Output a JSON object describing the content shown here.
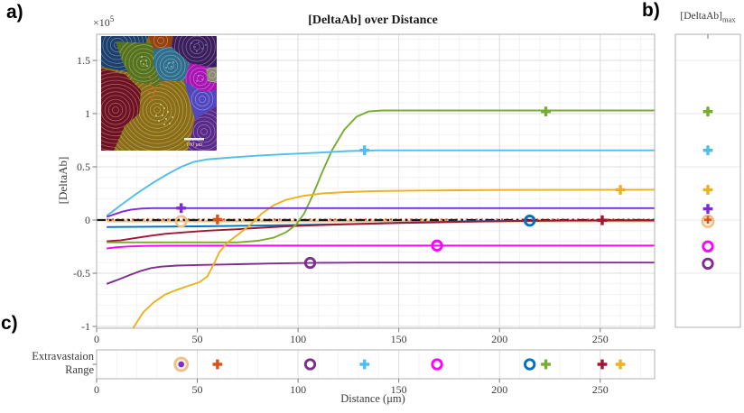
{
  "panel_labels": {
    "a": "a)",
    "b": "b)",
    "c": "c)"
  },
  "main_chart": {
    "title": "[DeltaAb] over Distance",
    "ylabel": "[DeltaAb]",
    "y_exponent_base": "×10",
    "y_exponent_sup": "5"
  },
  "panel_b": {
    "title_base": "[DeltaAb]",
    "title_sub": "max"
  },
  "panel_c": {
    "row_label_line1": "Extravastaion",
    "row_label_line2": "Range",
    "xlabel": "Distance (μm)"
  },
  "inset": {
    "scale_bar_label": "100 μm",
    "region_colors": [
      "#8a6d14",
      "#6e1222",
      "#1c3f6e",
      "#55721c",
      "#96420f",
      "#3a1d5c",
      "#2f6f8e",
      "#a915b5",
      "#8d8a75",
      "#5148c0",
      "#5a2a8a"
    ]
  },
  "chart_data": [
    {
      "panel": "a",
      "type": "line",
      "title": "[DeltaAb] over Distance",
      "xlabel": "",
      "ylabel": "[DeltaAb]",
      "y_scale_exponent": "×10^5",
      "units": "y values in 1e5, x in μm",
      "xlim": [
        0,
        277
      ],
      "ylim": [
        -1.02,
        1.75
      ],
      "xticks": [
        0,
        50,
        100,
        150,
        200,
        250
      ],
      "yticks": [
        -1,
        -0.5,
        0,
        0.5,
        1,
        1.5
      ],
      "grid": "major and minor, light gray",
      "zero_reference_line": {
        "y": 0,
        "style": "dash-dot",
        "color": "#1a1a1a"
      },
      "series": [
        {
          "name": "tan",
          "color": "#edc089",
          "marker": "circle",
          "line_style": "solid",
          "extravasation_range_um": 42,
          "max_value": -0.012,
          "marker_point": [
            42,
            -0.012
          ],
          "points": [
            [
              5,
              -0.012
            ],
            [
              277,
              -0.012
            ]
          ]
        },
        {
          "name": "orange",
          "color": "#D95319",
          "marker": "plus",
          "line_style": "dotted",
          "extravasation_range_um": 60,
          "max_value": 0.002,
          "marker_point": [
            60,
            0.005
          ],
          "points": [
            [
              5,
              0.005
            ],
            [
              277,
              0.005
            ]
          ]
        },
        {
          "name": "blue",
          "color": "#0072BD",
          "marker": "circle",
          "line_style": "solid",
          "extravasation_range_um": 215,
          "max_value": -0.006,
          "marker_point": [
            215,
            -0.006
          ],
          "points": [
            [
              5,
              -0.066
            ],
            [
              25,
              -0.063
            ],
            [
              50,
              -0.059
            ],
            [
              75,
              -0.053
            ],
            [
              100,
              -0.047
            ],
            [
              120,
              -0.04
            ],
            [
              140,
              -0.031
            ],
            [
              158,
              -0.022
            ],
            [
              175,
              -0.015
            ],
            [
              192,
              -0.01
            ],
            [
              210,
              -0.007
            ],
            [
              230,
              -0.005
            ],
            [
              277,
              -0.005
            ]
          ]
        },
        {
          "name": "darkred",
          "color": "#A2142F",
          "marker": "plus",
          "line_style": "solid",
          "extravasation_range_um": 251,
          "max_value": -0.002,
          "marker_point": [
            251,
            -0.002
          ],
          "points": [
            [
              5,
              -0.2
            ],
            [
              12,
              -0.19
            ],
            [
              19,
              -0.17
            ],
            [
              26,
              -0.15
            ],
            [
              34,
              -0.13
            ],
            [
              44,
              -0.115
            ],
            [
              55,
              -0.1
            ],
            [
              68,
              -0.088
            ],
            [
              82,
              -0.072
            ],
            [
              96,
              -0.058
            ],
            [
              112,
              -0.047
            ],
            [
              130,
              -0.037
            ],
            [
              150,
              -0.028
            ],
            [
              170,
              -0.021
            ],
            [
              190,
              -0.014
            ],
            [
              210,
              -0.009
            ],
            [
              232,
              -0.005
            ],
            [
              255,
              -0.002
            ],
            [
              277,
              -0.001
            ]
          ]
        },
        {
          "name": "magenta",
          "color": "#FF00FF",
          "marker": "circle",
          "line_style": "solid",
          "extravasation_range_um": 169,
          "max_value": -0.248,
          "marker_point": [
            169,
            -0.24
          ],
          "points": [
            [
              5,
              -0.268
            ],
            [
              10,
              -0.256
            ],
            [
              16,
              -0.248
            ],
            [
              24,
              -0.243
            ],
            [
              35,
              -0.241
            ],
            [
              277,
              -0.24
            ]
          ]
        },
        {
          "name": "purple",
          "color": "#7E2F8E",
          "marker": "circle",
          "line_style": "solid",
          "extravasation_range_um": 106,
          "max_value": -0.41,
          "marker_point": [
            106,
            -0.403
          ],
          "points": [
            [
              5,
              -0.6
            ],
            [
              10,
              -0.565
            ],
            [
              16,
              -0.52
            ],
            [
              22,
              -0.478
            ],
            [
              27,
              -0.452
            ],
            [
              32,
              -0.438
            ],
            [
              40,
              -0.428
            ],
            [
              52,
              -0.422
            ],
            [
              70,
              -0.415
            ],
            [
              90,
              -0.408
            ],
            [
              110,
              -0.402
            ],
            [
              130,
              -0.4
            ],
            [
              277,
              -0.4
            ]
          ]
        },
        {
          "name": "green",
          "color": "#77AC30",
          "marker": "plus",
          "line_style": "solid",
          "extravasation_range_um": 223,
          "max_value": 1.02,
          "marker_point": [
            223,
            1.02
          ],
          "points": [
            [
              5,
              -0.21
            ],
            [
              70,
              -0.21
            ],
            [
              80,
              -0.195
            ],
            [
              88,
              -0.165
            ],
            [
              94,
              -0.115
            ],
            [
              99,
              -0.045
            ],
            [
              103,
              0.06
            ],
            [
              107,
              0.22
            ],
            [
              112,
              0.45
            ],
            [
              117,
              0.66
            ],
            [
              123,
              0.85
            ],
            [
              129,
              0.97
            ],
            [
              135,
              1.02
            ],
            [
              142,
              1.03
            ],
            [
              277,
              1.03
            ]
          ]
        },
        {
          "name": "yellow",
          "color": "#EDB120",
          "marker": "plus",
          "line_style": "solid",
          "extravasation_range_um": 260,
          "max_value": 0.284,
          "marker_point": [
            260,
            0.284
          ],
          "points": [
            [
              18,
              -1.02
            ],
            [
              23,
              -0.87
            ],
            [
              28,
              -0.78
            ],
            [
              34,
              -0.7
            ],
            [
              40,
              -0.655
            ],
            [
              46,
              -0.615
            ],
            [
              51,
              -0.585
            ],
            [
              55,
              -0.53
            ],
            [
              58,
              -0.42
            ],
            [
              61,
              -0.3
            ],
            [
              65,
              -0.21
            ],
            [
              70,
              -0.14
            ],
            [
              76,
              -0.05
            ],
            [
              82,
              0.06
            ],
            [
              88,
              0.14
            ],
            [
              94,
              0.19
            ],
            [
              102,
              0.225
            ],
            [
              112,
              0.25
            ],
            [
              124,
              0.263
            ],
            [
              138,
              0.272
            ],
            [
              160,
              0.277
            ],
            [
              200,
              0.282
            ],
            [
              277,
              0.285
            ]
          ]
        },
        {
          "name": "cyan",
          "color": "#4DBEEE",
          "marker": "plus",
          "line_style": "solid",
          "extravasation_range_um": 133,
          "max_value": 0.655,
          "marker_point": [
            133,
            0.655
          ],
          "points": [
            [
              5,
              0.04
            ],
            [
              12,
              0.14
            ],
            [
              20,
              0.25
            ],
            [
              28,
              0.35
            ],
            [
              35,
              0.43
            ],
            [
              42,
              0.5
            ],
            [
              48,
              0.545
            ],
            [
              55,
              0.57
            ],
            [
              65,
              0.585
            ],
            [
              80,
              0.605
            ],
            [
              95,
              0.62
            ],
            [
              110,
              0.633
            ],
            [
              125,
              0.648
            ],
            [
              140,
              0.655
            ],
            [
              277,
              0.655
            ]
          ]
        },
        {
          "name": "violet",
          "color": "#7D2CDB",
          "marker": "plus",
          "line_style": "solid",
          "extravasation_range_um": 42,
          "max_value": 0.105,
          "marker_point": [
            42,
            0.112
          ],
          "points": [
            [
              5,
              0.03
            ],
            [
              9,
              0.055
            ],
            [
              13,
              0.08
            ],
            [
              17,
              0.097
            ],
            [
              22,
              0.108
            ],
            [
              28,
              0.112
            ],
            [
              277,
              0.112
            ]
          ]
        }
      ]
    },
    {
      "panel": "b",
      "type": "scatter",
      "title": "[DeltaAb]_max",
      "ylim": [
        -1.02,
        1.75
      ],
      "points": [
        {
          "name": "green",
          "color": "#77AC30",
          "marker": "plus",
          "value": 1.02
        },
        {
          "name": "cyan",
          "color": "#4DBEEE",
          "marker": "plus",
          "value": 0.655
        },
        {
          "name": "yellow",
          "color": "#EDB120",
          "marker": "plus",
          "value": 0.284
        },
        {
          "name": "violet",
          "color": "#7D2CDB",
          "marker": "plus",
          "value": 0.105
        },
        {
          "name": "blue",
          "color": "#0072BD",
          "marker": "circle",
          "value": -0.006
        },
        {
          "name": "darkred",
          "color": "#A2142F",
          "marker": "plus",
          "value": -0.002
        },
        {
          "name": "tan",
          "color": "#edc089",
          "marker": "circle",
          "value": -0.012
        },
        {
          "name": "orange",
          "color": "#D95319",
          "marker": "plus",
          "value": 0.002
        },
        {
          "name": "magenta",
          "color": "#FF00FF",
          "marker": "circle",
          "value": -0.248
        },
        {
          "name": "purple",
          "color": "#7E2F8E",
          "marker": "circle",
          "value": -0.41
        }
      ]
    },
    {
      "panel": "c",
      "type": "scatter",
      "title": "Extravastaion Range",
      "xlabel": "Distance (μm)",
      "xlim": [
        0,
        277
      ],
      "xticks": [
        0,
        50,
        100,
        150,
        200,
        250
      ],
      "points": [
        {
          "name": "tan",
          "color": "#edc089",
          "marker": "circle",
          "x": 42
        },
        {
          "name": "violet",
          "color": "#7D2CDB",
          "marker": "plus",
          "x": 42
        },
        {
          "name": "orange",
          "color": "#D95319",
          "marker": "plus",
          "x": 60
        },
        {
          "name": "purple",
          "color": "#7E2F8E",
          "marker": "circle",
          "x": 106
        },
        {
          "name": "cyan",
          "color": "#4DBEEE",
          "marker": "plus",
          "x": 133
        },
        {
          "name": "magenta",
          "color": "#FF00FF",
          "marker": "circle",
          "x": 169
        },
        {
          "name": "blue",
          "color": "#0072BD",
          "marker": "circle",
          "x": 215
        },
        {
          "name": "green",
          "color": "#77AC30",
          "marker": "plus",
          "x": 223
        },
        {
          "name": "darkred",
          "color": "#A2142F",
          "marker": "plus",
          "x": 251
        },
        {
          "name": "yellow",
          "color": "#EDB120",
          "marker": "plus",
          "x": 260
        }
      ]
    }
  ]
}
